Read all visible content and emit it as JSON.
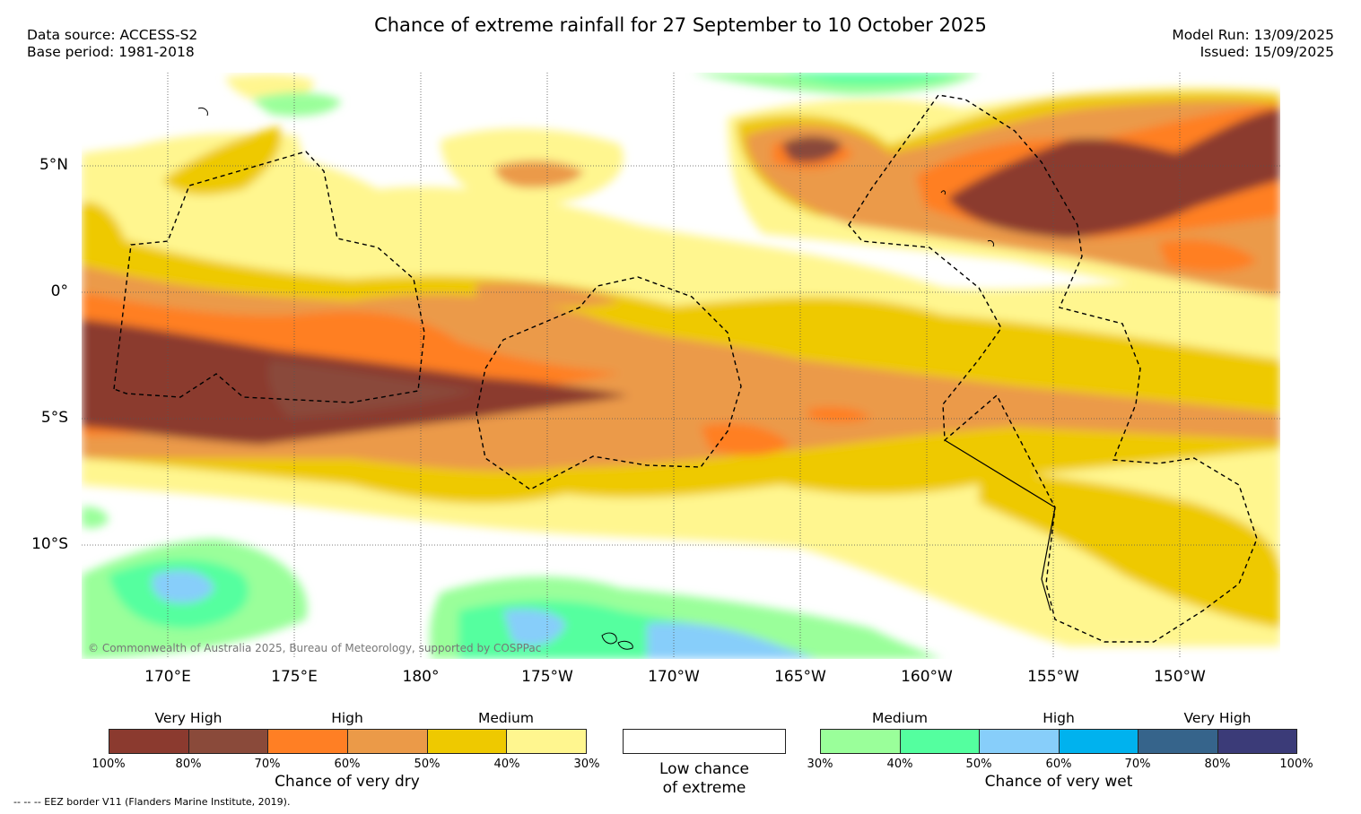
{
  "header": {
    "title": "Chance of extreme rainfall for 27 September to 10 October 2025",
    "data_source": "Data source: ACCESS-S2",
    "base_period": "Base period: 1981-2018",
    "model_run": "Model Run: 13/09/2025",
    "issued": "Issued: 15/09/2025"
  },
  "map": {
    "lat_labels": [
      "5°N",
      "0°",
      "5°S",
      "10°S"
    ],
    "lon_labels": [
      "170°E",
      "175°E",
      "180°",
      "175°W",
      "170°W",
      "165°W",
      "160°W",
      "155°W",
      "150°W"
    ],
    "copyright": "© Commonwealth of Australia 2025, Bureau of Meteorology, supported by COSPPac"
  },
  "legend": {
    "dry": {
      "titles": [
        "Very High",
        "High",
        "Medium"
      ],
      "ticks": [
        "100%",
        "80%",
        "70%",
        "60%",
        "50%",
        "40%",
        "30%"
      ],
      "colors": [
        "#8b3a2f",
        "#8a4a3a",
        "#ff7f24",
        "#eb9a48",
        "#eec900",
        "#fff68f"
      ],
      "label": "Chance of very dry"
    },
    "low": {
      "line1": "Low chance",
      "line2": "of extreme"
    },
    "wet": {
      "titles": [
        "Medium",
        "High",
        "Very High"
      ],
      "ticks": [
        "30%",
        "40%",
        "50%",
        "60%",
        "70%",
        "80%",
        "100%"
      ],
      "colors": [
        "#9aff9a",
        "#54ff9f",
        "#87cefa",
        "#00b2ee",
        "#36648b",
        "#3b3b78"
      ],
      "label": "Chance of very wet"
    }
  },
  "footnote": "--  --  -- EEZ border V11 (Flanders Marine Institute, 2019)."
}
